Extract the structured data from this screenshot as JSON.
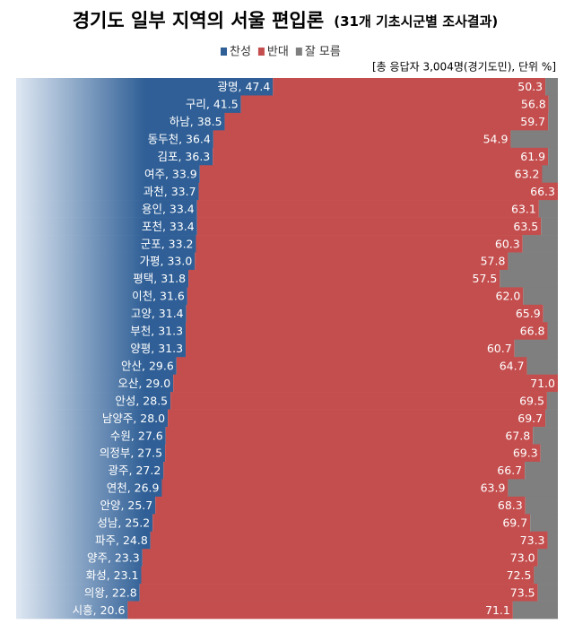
{
  "chart_data": {
    "type": "bar",
    "orientation": "horizontal",
    "stacked": true,
    "title": "경기도 일부 지역의 서울 편입론",
    "subtitle": "(31개 기초시군별 조사결과)",
    "note": "[총 응답자 3,004명(경기도민), 단위 %]",
    "xlim": [
      0,
      100
    ],
    "series": [
      {
        "name": "찬성",
        "color": "#2f5f96",
        "values": [
          47.4,
          41.5,
          38.5,
          36.4,
          36.3,
          33.9,
          33.7,
          33.4,
          33.4,
          33.2,
          33.0,
          31.8,
          31.6,
          31.4,
          31.3,
          31.3,
          29.6,
          29.0,
          28.5,
          28.0,
          27.6,
          27.5,
          27.2,
          26.9,
          25.7,
          25.2,
          24.8,
          23.3,
          23.1,
          22.8,
          20.6
        ],
        "value_labels": [
          "광명, 47.4",
          "구리, 41.5",
          "하남, 38.5",
          "동두천, 36.4",
          "김포, 36.3",
          "여주, 33.9",
          "과천, 33.7",
          "용인, 33.4",
          "포천, 33.4",
          "군포, 33.2",
          "가평, 33.0",
          "평택, 31.8",
          "이천, 31.6",
          "고양, 31.4",
          "부천, 31.3",
          "양평, 31.3",
          "안산, 29.6",
          "오산, 29.0",
          "안성, 28.5",
          "남양주, 28.0",
          "수원, 27.6",
          "의정부, 27.5",
          "광주, 27.2",
          "연천, 26.9",
          "안양, 25.7",
          "성남, 25.2",
          "파주, 24.8",
          "양주, 23.3",
          "화성, 23.1",
          "의왕, 22.8",
          "시흥, 20.6"
        ]
      },
      {
        "name": "반대",
        "color": "#c44e4e",
        "values": [
          50.3,
          56.8,
          59.7,
          54.9,
          61.9,
          63.2,
          66.3,
          63.1,
          63.5,
          60.3,
          57.8,
          57.5,
          62.0,
          65.9,
          66.8,
          60.7,
          64.7,
          71.0,
          69.5,
          69.7,
          67.8,
          69.3,
          66.7,
          63.9,
          68.3,
          69.7,
          73.3,
          73.0,
          72.5,
          73.5,
          71.1
        ],
        "value_labels": [
          "50.3",
          "56.8",
          "59.7",
          "54.9",
          "61.9",
          "63.2",
          "66.3",
          "63.1",
          "63.5",
          "60.3",
          "57.8",
          "57.5",
          "62.0",
          "65.9",
          "66.8",
          "60.7",
          "64.7",
          "71.0",
          "69.5",
          "69.7",
          "67.8",
          "69.3",
          "66.7",
          "63.9",
          "68.3",
          "69.7",
          "73.3",
          "73.0",
          "72.5",
          "73.5",
          "71.1"
        ]
      },
      {
        "name": "잘 모름",
        "color": "#7f7f7f",
        "values": [
          2.3,
          1.7,
          1.8,
          8.7,
          1.8,
          2.9,
          0,
          3.5,
          3.1,
          6.5,
          9.2,
          10.7,
          6.4,
          2.7,
          1.9,
          8.0,
          5.7,
          0,
          2.0,
          2.3,
          4.6,
          3.2,
          6.1,
          9.2,
          6.0,
          5.1,
          1.9,
          3.7,
          4.4,
          3.7,
          8.3
        ]
      }
    ]
  }
}
